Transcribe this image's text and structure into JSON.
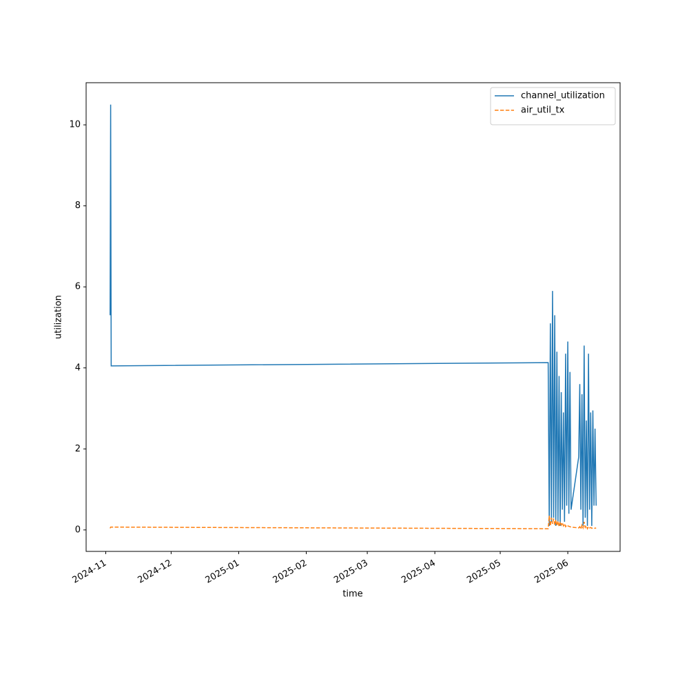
{
  "chart_data": {
    "type": "line",
    "xlabel": "time",
    "ylabel": "utilization",
    "x": [
      "2024-11-03 00:00",
      "2024-11-03 06:00",
      "2024-11-03 12:00",
      "2025-05-23 00:00",
      "2025-05-23 12:00",
      "2025-05-24 00:00",
      "2025-05-24 12:00",
      "2025-05-25 00:00",
      "2025-05-25 12:00",
      "2025-05-26 00:00",
      "2025-05-26 12:00",
      "2025-05-27 00:00",
      "2025-05-27 12:00",
      "2025-05-28 00:00",
      "2025-05-28 12:00",
      "2025-05-29 00:00",
      "2025-05-29 12:00",
      "2025-05-30 00:00",
      "2025-05-30 12:00",
      "2025-05-31 00:00",
      "2025-05-31 12:00",
      "2025-06-01 00:00",
      "2025-06-01 12:00",
      "2025-06-02 00:00",
      "2025-06-02 12:00",
      "2025-06-06 00:00",
      "2025-06-06 12:00",
      "2025-06-07 00:00",
      "2025-06-07 12:00",
      "2025-06-08 00:00",
      "2025-06-08 12:00",
      "2025-06-09 00:00",
      "2025-06-09 12:00",
      "2025-06-10 00:00",
      "2025-06-10 12:00",
      "2025-06-11 00:00",
      "2025-06-11 12:00",
      "2025-06-12 00:00",
      "2025-06-12 12:00",
      "2025-06-13 00:00",
      "2025-06-13 12:00",
      "2025-06-14 00:00"
    ],
    "series": [
      {
        "name": "channel_utilization",
        "color": "#1f77b4",
        "dashed": false,
        "values": [
          5.3,
          10.5,
          4.05,
          4.13,
          0.1,
          5.1,
          0.2,
          5.9,
          0.3,
          5.3,
          0.1,
          4.4,
          0.2,
          3.8,
          0.1,
          3.4,
          0.5,
          2.9,
          0.2,
          4.35,
          0.6,
          4.65,
          0.4,
          3.9,
          0.5,
          1.8,
          3.6,
          0.5,
          3.35,
          0.1,
          4.55,
          0.3,
          2.7,
          0.1,
          4.35,
          0.5,
          2.9,
          0.1,
          2.95,
          0.6,
          2.5,
          0.6
        ]
      },
      {
        "name": "air_util_tx",
        "color": "#ff7f0e",
        "dashed": true,
        "values": [
          0.04,
          0.07,
          0.07,
          0.03,
          0.35,
          0.1,
          0.3,
          0.15,
          0.28,
          0.12,
          0.25,
          0.1,
          0.22,
          0.08,
          0.2,
          0.12,
          0.18,
          0.1,
          0.15,
          0.08,
          0.12,
          0.1,
          0.09,
          0.08,
          0.07,
          0.05,
          0.08,
          0.02,
          0.12,
          0.05,
          0.2,
          0.06,
          0.1,
          0.03,
          0.08,
          0.05,
          0.06,
          0.04,
          0.05,
          0.05,
          0.04,
          0.05
        ]
      }
    ],
    "xlim": [
      "2024-10-23 00:00",
      "2025-06-25 00:00"
    ],
    "xticks": [
      {
        "value": "2024-11-01 00:00",
        "label": "2024-11"
      },
      {
        "value": "2024-12-01 00:00",
        "label": "2024-12"
      },
      {
        "value": "2025-01-01 00:00",
        "label": "2025-01"
      },
      {
        "value": "2025-02-01 00:00",
        "label": "2025-02"
      },
      {
        "value": "2025-03-01 00:00",
        "label": "2025-03"
      },
      {
        "value": "2025-04-01 00:00",
        "label": "2025-04"
      },
      {
        "value": "2025-05-01 00:00",
        "label": "2025-05"
      },
      {
        "value": "2025-06-01 00:00",
        "label": "2025-06"
      }
    ],
    "ylim": [
      -0.53,
      11.04
    ],
    "yticks": [
      0,
      2,
      4,
      6,
      8,
      10
    ],
    "legend": "upper right"
  }
}
